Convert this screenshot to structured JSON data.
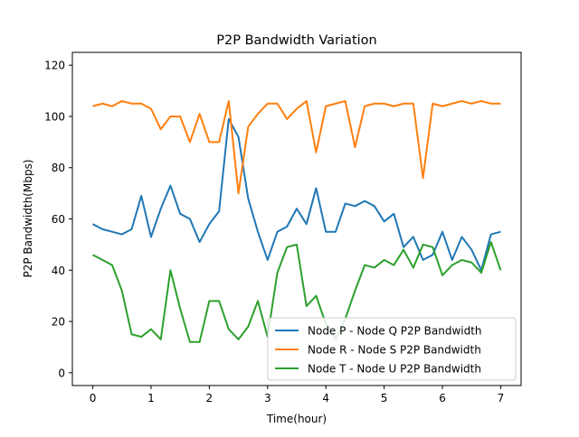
{
  "chart_data": {
    "type": "line",
    "title": "P2P Bandwidth Variation",
    "xlabel": "Time(hour)",
    "ylabel": "P2P Bandwidth(Mbps)",
    "xlim": [
      -0.35,
      7.35
    ],
    "ylim": [
      -5,
      125
    ],
    "xticks": [
      0,
      1,
      2,
      3,
      4,
      5,
      6,
      7
    ],
    "yticks": [
      0,
      20,
      40,
      60,
      80,
      100,
      120
    ],
    "grid": false,
    "legend_position": "lower-right",
    "x": [
      0,
      0.167,
      0.333,
      0.5,
      0.667,
      0.833,
      1.0,
      1.167,
      1.333,
      1.5,
      1.667,
      1.833,
      2.0,
      2.167,
      2.333,
      2.5,
      2.667,
      2.833,
      3.0,
      3.167,
      3.333,
      3.5,
      3.667,
      3.833,
      4.0,
      4.167,
      4.333,
      4.5,
      4.667,
      4.833,
      5.0,
      5.167,
      5.333,
      5.5,
      5.667,
      5.833,
      6.0,
      6.167,
      6.333,
      6.5,
      6.667,
      6.833,
      7.0
    ],
    "series": [
      {
        "name": "Node P - Node Q P2P Bandwidth",
        "color": "#1f77b4",
        "values": [
          58,
          56,
          55,
          54,
          56,
          69,
          53,
          64,
          73,
          62,
          60,
          51,
          58,
          63,
          99,
          92,
          68,
          55,
          44,
          55,
          57,
          64,
          58,
          72,
          55,
          55,
          66,
          65,
          67,
          65,
          59,
          62,
          49,
          53,
          44,
          46,
          55,
          44,
          53,
          48,
          40,
          54,
          55
        ]
      },
      {
        "name": "Node R - Node S P2P Bandwidth",
        "color": "#ff7f0e",
        "values": [
          104,
          105,
          104,
          106,
          105,
          105,
          103,
          95,
          100,
          100,
          90,
          101,
          90,
          90,
          106,
          70,
          96,
          101,
          105,
          105,
          99,
          103,
          106,
          86,
          104,
          105,
          106,
          88,
          104,
          105,
          105,
          104,
          105,
          105,
          76,
          105,
          104,
          105,
          106,
          105,
          106,
          105,
          105
        ]
      },
      {
        "name": "Node T - Node U P2P Bandwidth",
        "color": "#2ca02c",
        "values": [
          46,
          44,
          42,
          32,
          15,
          14,
          17,
          13,
          40,
          25,
          12,
          12,
          28,
          28,
          17,
          13,
          18,
          28,
          14,
          39,
          49,
          50,
          26,
          30,
          19,
          13,
          21,
          32,
          42,
          41,
          44,
          42,
          48,
          41,
          50,
          49,
          38,
          42,
          44,
          43,
          39,
          51,
          40
        ]
      }
    ]
  }
}
